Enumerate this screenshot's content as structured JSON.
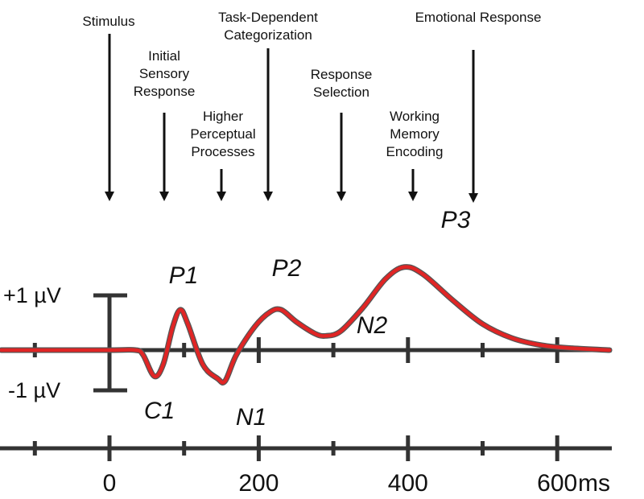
{
  "annotations": [
    {
      "lines": [
        "Stimulus"
      ],
      "time_ms": 0
    },
    {
      "lines": [
        "Initial",
        "Sensory",
        "Response"
      ],
      "time_ms": 75
    },
    {
      "lines": [
        "Higher",
        "Perceptual",
        "Processes"
      ],
      "time_ms": 150
    },
    {
      "lines": [
        "Task-Dependent",
        "Categorization"
      ],
      "time_ms": 215
    },
    {
      "lines": [
        "Response",
        "Selection"
      ],
      "time_ms": 310
    },
    {
      "lines": [
        "Working",
        "Memory",
        "Encoding"
      ],
      "time_ms": 400
    },
    {
      "lines": [
        "Emotional Response"
      ],
      "time_ms": 490
    }
  ],
  "peaks": [
    {
      "label": "C1",
      "time_ms": 60,
      "amplitude_uv": -0.55
    },
    {
      "label": "P1",
      "time_ms": 95,
      "amplitude_uv": 0.85
    },
    {
      "label": "N1",
      "time_ms": 155,
      "amplitude_uv": -0.65
    },
    {
      "label": "P2",
      "time_ms": 230,
      "amplitude_uv": 0.85
    },
    {
      "label": "N2",
      "time_ms": 290,
      "amplitude_uv": 0.3
    },
    {
      "label": "P3",
      "time_ms": 395,
      "amplitude_uv": 1.75
    }
  ],
  "scale_bar": {
    "top_label": "+1 µV",
    "bottom_label": "-1 µV"
  },
  "axis": {
    "tick_labels": [
      "0",
      "200",
      "400",
      "600"
    ],
    "unit": "ms",
    "ticks_ms": [
      -100,
      0,
      100,
      200,
      300,
      400,
      500,
      600
    ],
    "range_ms": [
      -145,
      670
    ]
  },
  "waveform": {
    "color": "#e02525",
    "points_ms_uv": [
      [
        -145,
        0
      ],
      [
        0,
        0
      ],
      [
        35,
        0
      ],
      [
        45,
        -0.1
      ],
      [
        60,
        -0.55
      ],
      [
        72,
        -0.3
      ],
      [
        85,
        0.5
      ],
      [
        95,
        0.85
      ],
      [
        105,
        0.55
      ],
      [
        125,
        -0.3
      ],
      [
        145,
        -0.6
      ],
      [
        155,
        -0.65
      ],
      [
        170,
        -0.1
      ],
      [
        195,
        0.5
      ],
      [
        215,
        0.8
      ],
      [
        230,
        0.85
      ],
      [
        250,
        0.6
      ],
      [
        275,
        0.35
      ],
      [
        290,
        0.3
      ],
      [
        310,
        0.4
      ],
      [
        340,
        0.9
      ],
      [
        370,
        1.5
      ],
      [
        395,
        1.75
      ],
      [
        420,
        1.6
      ],
      [
        460,
        1.05
      ],
      [
        500,
        0.55
      ],
      [
        540,
        0.25
      ],
      [
        580,
        0.1
      ],
      [
        620,
        0.04
      ],
      [
        670,
        0.0
      ]
    ]
  }
}
